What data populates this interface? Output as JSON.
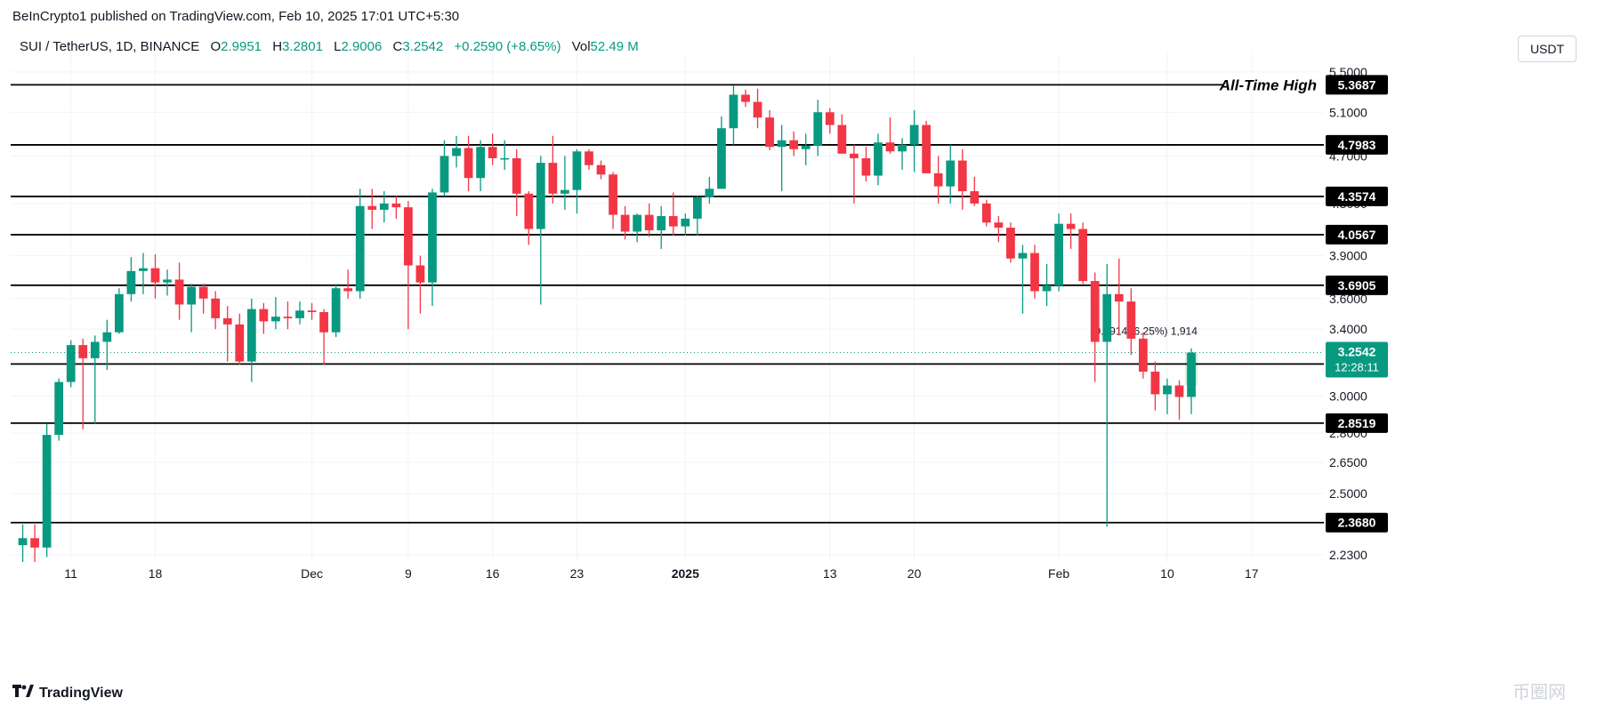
{
  "header": {
    "publish_line": "BeInCrypto1 published on TradingView.com, Feb 10, 2025 17:01 UTC+5:30",
    "symbol": "SUI / TetherUS, 1D, BINANCE",
    "o_label": "O",
    "o_value": "2.9951",
    "h_label": "H",
    "h_value": "3.2801",
    "l_label": "L",
    "l_value": "2.9006",
    "c_label": "C",
    "c_value": "3.2542",
    "change": "+0.2590 (+8.65%)",
    "vol_label": "Vol",
    "vol_value": "52.49 M",
    "currency_button": "USDT"
  },
  "footer": {
    "brand": "TradingView",
    "corner_mark": "币圈网"
  },
  "colors": {
    "up": "#089981",
    "down": "#f23645",
    "line": "#000000",
    "grid": "#f0f3fa",
    "text": "#131722"
  },
  "chart_data": {
    "type": "candlestick",
    "title": "SUI / TetherUS, 1D, BINANCE",
    "yaxis": {
      "scale": "log",
      "ticks": [
        "5.5000",
        "5.1000",
        "4.7000",
        "4.3000",
        "3.9000",
        "3.6000",
        "3.4000",
        "3.0000",
        "2.8000",
        "2.6500",
        "2.5000",
        "2.2300"
      ],
      "range": [
        2.2,
        5.6
      ]
    },
    "xaxis": {
      "ticks": [
        {
          "label": "11",
          "date": "2024-11-11"
        },
        {
          "label": "18",
          "date": "2024-11-18"
        },
        {
          "label": "Dec",
          "date": "2024-12-01"
        },
        {
          "label": "9",
          "date": "2024-12-09"
        },
        {
          "label": "16",
          "date": "2024-12-16"
        },
        {
          "label": "23",
          "date": "2024-12-23"
        },
        {
          "label": "2025",
          "date": "2025-01-01"
        },
        {
          "label": "13",
          "date": "2025-01-13"
        },
        {
          "label": "20",
          "date": "2025-01-20"
        },
        {
          "label": "Feb",
          "date": "2025-02-01"
        },
        {
          "label": "10",
          "date": "2025-02-10"
        },
        {
          "label": "17",
          "date": "2025-02-17"
        }
      ],
      "range": [
        "2024-11-06",
        "2025-02-23"
      ]
    },
    "levels": [
      {
        "value": 5.3687,
        "label": "5.3687",
        "note": "All-Time High"
      },
      {
        "value": 4.7983,
        "label": "4.7983"
      },
      {
        "value": 4.3574,
        "label": "4.3574"
      },
      {
        "value": 4.0567,
        "label": "4.0567"
      },
      {
        "value": 3.6905,
        "label": "3.6905"
      },
      {
        "value": 3.1855,
        "label": "3.1855"
      },
      {
        "value": 2.8519,
        "label": "2.8519"
      },
      {
        "value": 2.368,
        "label": "2.3680"
      }
    ],
    "last_price": {
      "value": 3.2542,
      "label": "3.2542",
      "countdown": "12:28:11"
    },
    "measure": {
      "text": "0.1914 (6.25%) 1,914",
      "from": 3.0628,
      "to": 3.2542
    },
    "candles": [
      {
        "d": "2024-11-07",
        "o": 2.27,
        "h": 2.36,
        "l": 2.2,
        "c": 2.3
      },
      {
        "d": "2024-11-08",
        "o": 2.3,
        "h": 2.36,
        "l": 2.2,
        "c": 2.26
      },
      {
        "d": "2024-11-09",
        "o": 2.26,
        "h": 2.85,
        "l": 2.22,
        "c": 2.79
      },
      {
        "d": "2024-11-10",
        "o": 2.79,
        "h": 3.1,
        "l": 2.76,
        "c": 3.08
      },
      {
        "d": "2024-11-11",
        "o": 3.08,
        "h": 3.33,
        "l": 3.05,
        "c": 3.3
      },
      {
        "d": "2024-11-12",
        "o": 3.3,
        "h": 3.34,
        "l": 2.82,
        "c": 3.22
      },
      {
        "d": "2024-11-13",
        "o": 3.22,
        "h": 3.36,
        "l": 2.85,
        "c": 3.32
      },
      {
        "d": "2024-11-14",
        "o": 3.32,
        "h": 3.46,
        "l": 3.15,
        "c": 3.38
      },
      {
        "d": "2024-11-15",
        "o": 3.38,
        "h": 3.67,
        "l": 3.37,
        "c": 3.63
      },
      {
        "d": "2024-11-16",
        "o": 3.63,
        "h": 3.89,
        "l": 3.58,
        "c": 3.79
      },
      {
        "d": "2024-11-17",
        "o": 3.79,
        "h": 3.92,
        "l": 3.63,
        "c": 3.81
      },
      {
        "d": "2024-11-18",
        "o": 3.81,
        "h": 3.91,
        "l": 3.6,
        "c": 3.71
      },
      {
        "d": "2024-11-19",
        "o": 3.71,
        "h": 3.8,
        "l": 3.62,
        "c": 3.73
      },
      {
        "d": "2024-11-20",
        "o": 3.73,
        "h": 3.85,
        "l": 3.46,
        "c": 3.56
      },
      {
        "d": "2024-11-21",
        "o": 3.56,
        "h": 3.7,
        "l": 3.38,
        "c": 3.68
      },
      {
        "d": "2024-11-22",
        "o": 3.68,
        "h": 3.7,
        "l": 3.5,
        "c": 3.6
      },
      {
        "d": "2024-11-23",
        "o": 3.6,
        "h": 3.65,
        "l": 3.4,
        "c": 3.47
      },
      {
        "d": "2024-11-24",
        "o": 3.47,
        "h": 3.55,
        "l": 3.2,
        "c": 3.43
      },
      {
        "d": "2024-11-25",
        "o": 3.43,
        "h": 3.5,
        "l": 3.18,
        "c": 3.2
      },
      {
        "d": "2024-11-26",
        "o": 3.2,
        "h": 3.6,
        "l": 3.08,
        "c": 3.53
      },
      {
        "d": "2024-11-27",
        "o": 3.53,
        "h": 3.57,
        "l": 3.37,
        "c": 3.45
      },
      {
        "d": "2024-11-28",
        "o": 3.45,
        "h": 3.61,
        "l": 3.4,
        "c": 3.48
      },
      {
        "d": "2024-11-29",
        "o": 3.48,
        "h": 3.58,
        "l": 3.4,
        "c": 3.47
      },
      {
        "d": "2024-11-30",
        "o": 3.47,
        "h": 3.58,
        "l": 3.43,
        "c": 3.52
      },
      {
        "d": "2024-12-01",
        "o": 3.52,
        "h": 3.57,
        "l": 3.46,
        "c": 3.51
      },
      {
        "d": "2024-12-02",
        "o": 3.51,
        "h": 3.53,
        "l": 3.18,
        "c": 3.38
      },
      {
        "d": "2024-12-03",
        "o": 3.38,
        "h": 3.7,
        "l": 3.35,
        "c": 3.67
      },
      {
        "d": "2024-12-04",
        "o": 3.67,
        "h": 3.8,
        "l": 3.6,
        "c": 3.65
      },
      {
        "d": "2024-12-05",
        "o": 3.65,
        "h": 4.42,
        "l": 3.6,
        "c": 4.28
      },
      {
        "d": "2024-12-06",
        "o": 4.28,
        "h": 4.42,
        "l": 4.1,
        "c": 4.25
      },
      {
        "d": "2024-12-07",
        "o": 4.25,
        "h": 4.4,
        "l": 4.15,
        "c": 4.3
      },
      {
        "d": "2024-12-08",
        "o": 4.3,
        "h": 4.36,
        "l": 4.18,
        "c": 4.27
      },
      {
        "d": "2024-12-09",
        "o": 4.27,
        "h": 4.32,
        "l": 3.4,
        "c": 3.83
      },
      {
        "d": "2024-12-10",
        "o": 3.83,
        "h": 3.9,
        "l": 3.5,
        "c": 3.71
      },
      {
        "d": "2024-12-11",
        "o": 3.71,
        "h": 4.42,
        "l": 3.55,
        "c": 4.39
      },
      {
        "d": "2024-12-12",
        "o": 4.39,
        "h": 4.84,
        "l": 4.36,
        "c": 4.7
      },
      {
        "d": "2024-12-13",
        "o": 4.7,
        "h": 4.88,
        "l": 4.6,
        "c": 4.77
      },
      {
        "d": "2024-12-14",
        "o": 4.77,
        "h": 4.88,
        "l": 4.4,
        "c": 4.51
      },
      {
        "d": "2024-12-15",
        "o": 4.51,
        "h": 4.84,
        "l": 4.4,
        "c": 4.78
      },
      {
        "d": "2024-12-16",
        "o": 4.78,
        "h": 4.9,
        "l": 4.62,
        "c": 4.68
      },
      {
        "d": "2024-12-17",
        "o": 4.68,
        "h": 4.84,
        "l": 4.58,
        "c": 4.68
      },
      {
        "d": "2024-12-18",
        "o": 4.68,
        "h": 4.76,
        "l": 4.2,
        "c": 4.38
      },
      {
        "d": "2024-12-19",
        "o": 4.38,
        "h": 4.4,
        "l": 3.98,
        "c": 4.1
      },
      {
        "d": "2024-12-20",
        "o": 4.1,
        "h": 4.7,
        "l": 3.56,
        "c": 4.64
      },
      {
        "d": "2024-12-21",
        "o": 4.64,
        "h": 4.88,
        "l": 4.3,
        "c": 4.38
      },
      {
        "d": "2024-12-22",
        "o": 4.38,
        "h": 4.7,
        "l": 4.25,
        "c": 4.41
      },
      {
        "d": "2024-12-23",
        "o": 4.41,
        "h": 4.76,
        "l": 4.22,
        "c": 4.74
      },
      {
        "d": "2024-12-24",
        "o": 4.74,
        "h": 4.76,
        "l": 4.58,
        "c": 4.62
      },
      {
        "d": "2024-12-25",
        "o": 4.62,
        "h": 4.66,
        "l": 4.5,
        "c": 4.54
      },
      {
        "d": "2024-12-26",
        "o": 4.54,
        "h": 4.56,
        "l": 4.1,
        "c": 4.21
      },
      {
        "d": "2024-12-27",
        "o": 4.21,
        "h": 4.28,
        "l": 4.02,
        "c": 4.08
      },
      {
        "d": "2024-12-28",
        "o": 4.08,
        "h": 4.22,
        "l": 4.0,
        "c": 4.21
      },
      {
        "d": "2024-12-29",
        "o": 4.21,
        "h": 4.3,
        "l": 4.04,
        "c": 4.09
      },
      {
        "d": "2024-12-30",
        "o": 4.09,
        "h": 4.28,
        "l": 3.95,
        "c": 4.2
      },
      {
        "d": "2024-12-31",
        "o": 4.2,
        "h": 4.39,
        "l": 4.05,
        "c": 4.12
      },
      {
        "d": "2025-01-01",
        "o": 4.12,
        "h": 4.22,
        "l": 4.05,
        "c": 4.18
      },
      {
        "d": "2025-01-02",
        "o": 4.18,
        "h": 4.36,
        "l": 4.05,
        "c": 4.35
      },
      {
        "d": "2025-01-03",
        "o": 4.35,
        "h": 4.52,
        "l": 4.3,
        "c": 4.42
      },
      {
        "d": "2025-01-04",
        "o": 4.42,
        "h": 5.06,
        "l": 4.42,
        "c": 4.95
      },
      {
        "d": "2025-01-05",
        "o": 4.95,
        "h": 5.36,
        "l": 4.8,
        "c": 5.27
      },
      {
        "d": "2025-01-06",
        "o": 5.27,
        "h": 5.32,
        "l": 5.15,
        "c": 5.2
      },
      {
        "d": "2025-01-07",
        "o": 5.2,
        "h": 5.33,
        "l": 4.95,
        "c": 5.05
      },
      {
        "d": "2025-01-08",
        "o": 5.05,
        "h": 5.12,
        "l": 4.75,
        "c": 4.78
      },
      {
        "d": "2025-01-09",
        "o": 4.78,
        "h": 4.98,
        "l": 4.4,
        "c": 4.84
      },
      {
        "d": "2025-01-10",
        "o": 4.84,
        "h": 4.92,
        "l": 4.7,
        "c": 4.76
      },
      {
        "d": "2025-01-11",
        "o": 4.76,
        "h": 4.9,
        "l": 4.62,
        "c": 4.79
      },
      {
        "d": "2025-01-12",
        "o": 4.79,
        "h": 5.22,
        "l": 4.7,
        "c": 5.1
      },
      {
        "d": "2025-01-13",
        "o": 5.1,
        "h": 5.14,
        "l": 4.9,
        "c": 4.98
      },
      {
        "d": "2025-01-14",
        "o": 4.98,
        "h": 5.08,
        "l": 4.72,
        "c": 4.72
      },
      {
        "d": "2025-01-15",
        "o": 4.72,
        "h": 4.8,
        "l": 4.3,
        "c": 4.68
      },
      {
        "d": "2025-01-16",
        "o": 4.68,
        "h": 4.78,
        "l": 4.48,
        "c": 4.53
      },
      {
        "d": "2025-01-17",
        "o": 4.53,
        "h": 4.9,
        "l": 4.45,
        "c": 4.82
      },
      {
        "d": "2025-01-18",
        "o": 4.82,
        "h": 5.05,
        "l": 4.72,
        "c": 4.74
      },
      {
        "d": "2025-01-19",
        "o": 4.74,
        "h": 4.86,
        "l": 4.58,
        "c": 4.8
      },
      {
        "d": "2025-01-20",
        "o": 4.8,
        "h": 5.12,
        "l": 4.56,
        "c": 4.98
      },
      {
        "d": "2025-01-21",
        "o": 4.98,
        "h": 5.02,
        "l": 4.55,
        "c": 4.55
      },
      {
        "d": "2025-01-22",
        "o": 4.55,
        "h": 4.7,
        "l": 4.3,
        "c": 4.44
      },
      {
        "d": "2025-01-23",
        "o": 4.44,
        "h": 4.8,
        "l": 4.3,
        "c": 4.66
      },
      {
        "d": "2025-01-24",
        "o": 4.66,
        "h": 4.76,
        "l": 4.25,
        "c": 4.4
      },
      {
        "d": "2025-01-25",
        "o": 4.4,
        "h": 4.52,
        "l": 4.28,
        "c": 4.3
      },
      {
        "d": "2025-01-26",
        "o": 4.3,
        "h": 4.33,
        "l": 4.12,
        "c": 4.15
      },
      {
        "d": "2025-01-27",
        "o": 4.15,
        "h": 4.2,
        "l": 4.0,
        "c": 4.11
      },
      {
        "d": "2025-01-28",
        "o": 4.11,
        "h": 4.15,
        "l": 3.85,
        "c": 3.88
      },
      {
        "d": "2025-01-29",
        "o": 3.88,
        "h": 3.98,
        "l": 3.5,
        "c": 3.92
      },
      {
        "d": "2025-01-30",
        "o": 3.92,
        "h": 3.98,
        "l": 3.6,
        "c": 3.65
      },
      {
        "d": "2025-01-31",
        "o": 3.65,
        "h": 3.84,
        "l": 3.55,
        "c": 3.69
      },
      {
        "d": "2025-02-01",
        "o": 3.69,
        "h": 4.22,
        "l": 3.65,
        "c": 4.14
      },
      {
        "d": "2025-02-02",
        "o": 4.14,
        "h": 4.22,
        "l": 3.95,
        "c": 4.1
      },
      {
        "d": "2025-02-03",
        "o": 4.1,
        "h": 4.15,
        "l": 3.7,
        "c": 3.72
      },
      {
        "d": "2025-02-04",
        "o": 3.72,
        "h": 3.78,
        "l": 3.08,
        "c": 3.32
      },
      {
        "d": "2025-02-05",
        "o": 3.32,
        "h": 3.84,
        "l": 2.35,
        "c": 3.63
      },
      {
        "d": "2025-02-06",
        "o": 3.63,
        "h": 3.88,
        "l": 3.36,
        "c": 3.58
      },
      {
        "d": "2025-02-07",
        "o": 3.58,
        "h": 3.67,
        "l": 3.24,
        "c": 3.34
      },
      {
        "d": "2025-02-08",
        "o": 3.34,
        "h": 3.38,
        "l": 3.1,
        "c": 3.14
      },
      {
        "d": "2025-02-09",
        "o": 3.14,
        "h": 3.2,
        "l": 2.92,
        "c": 3.01
      },
      {
        "d": "2025-02-10",
        "o": 3.01,
        "h": 3.1,
        "l": 2.9,
        "c": 3.06
      },
      {
        "d": "2025-02-11",
        "o": 3.06,
        "h": 3.09,
        "l": 2.87,
        "c": 2.995
      },
      {
        "d": "2025-02-12",
        "o": 2.9951,
        "h": 3.2801,
        "l": 2.9006,
        "c": 3.2542
      }
    ]
  }
}
